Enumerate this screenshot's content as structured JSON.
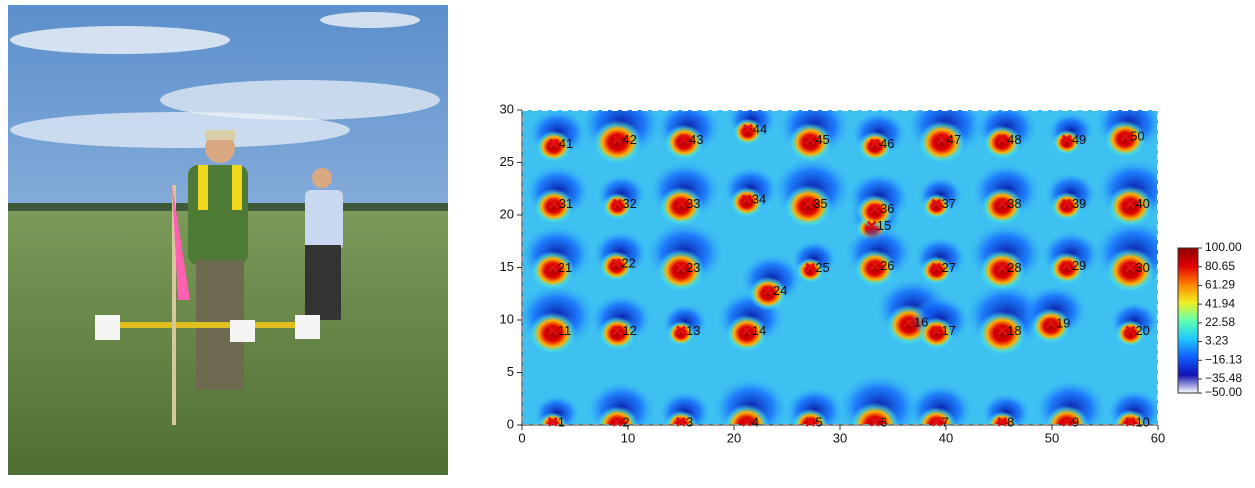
{
  "chart_data": {
    "type": "scatter",
    "xlim": [
      0,
      60
    ],
    "ylim": [
      0,
      30
    ],
    "xticks": [
      0,
      10,
      20,
      30,
      40,
      50,
      60
    ],
    "yticks": [
      0,
      5,
      10,
      15,
      20,
      25,
      30
    ],
    "marker_color": "#e01010",
    "point_labels": [
      "1",
      "2",
      "3",
      "4",
      "5",
      "6",
      "7",
      "8",
      "9",
      "10",
      "11",
      "12",
      "13",
      "14",
      "15",
      "16",
      "17",
      "18",
      "19",
      "20",
      "21",
      "22",
      "23",
      "24",
      "25",
      "26",
      "27",
      "28",
      "29",
      "30",
      "31",
      "32",
      "33",
      "34",
      "35",
      "36",
      "37",
      "38",
      "39",
      "40",
      "41",
      "42",
      "43",
      "44",
      "45",
      "46",
      "47",
      "48",
      "49",
      "50"
    ],
    "x": [
      2.9,
      9.0,
      15.0,
      21.2,
      27.2,
      33.3,
      39.1,
      45.3,
      51.4,
      57.4,
      2.9,
      9.0,
      15.0,
      21.2,
      33.0,
      36.5,
      39.1,
      45.3,
      49.9,
      57.4,
      2.9,
      8.9,
      15.0,
      23.2,
      27.2,
      33.3,
      39.1,
      45.3,
      51.4,
      57.4,
      3.0,
      9.0,
      15.0,
      21.2,
      27.0,
      33.3,
      39.1,
      45.3,
      51.4,
      57.4,
      3.0,
      9.0,
      15.3,
      21.3,
      27.2,
      33.3,
      39.6,
      45.3,
      51.4,
      56.9
    ],
    "y": [
      0.3,
      0.3,
      0.3,
      0.3,
      0.3,
      0.3,
      0.3,
      0.3,
      0.3,
      0.3,
      9.0,
      9.0,
      9.0,
      9.0,
      19.0,
      9.8,
      9.0,
      9.0,
      9.7,
      9.0,
      15.0,
      15.4,
      15.0,
      12.8,
      15.0,
      15.2,
      15.0,
      15.0,
      15.2,
      15.0,
      21.1,
      21.1,
      21.1,
      21.5,
      21.1,
      20.6,
      21.1,
      21.1,
      21.1,
      21.1,
      26.8,
      27.2,
      27.2,
      28.2,
      27.2,
      26.8,
      27.2,
      27.2,
      27.2,
      27.5
    ],
    "colorbar": {
      "colors": [
        "#ffffff",
        "#1010b0",
        "#1060ff",
        "#20c8ff",
        "#60ffb0",
        "#f0f020",
        "#ff8000",
        "#e00000",
        "#900000"
      ],
      "ticks": [
        {
          "value": 100,
          "label": "100.00"
        },
        {
          "value": 80.65,
          "label": "80.65"
        },
        {
          "value": 61.29,
          "label": "61.29"
        },
        {
          "value": 41.94,
          "label": "41.94"
        },
        {
          "value": 22.58,
          "label": "22.58"
        },
        {
          "value": 3.23,
          "label": "3.23"
        },
        {
          "value": -16.13,
          "label": "−16.13"
        },
        {
          "value": -35.48,
          "label": "−35.48"
        },
        {
          "value": -50,
          "label": "−50.00"
        }
      ]
    }
  }
}
